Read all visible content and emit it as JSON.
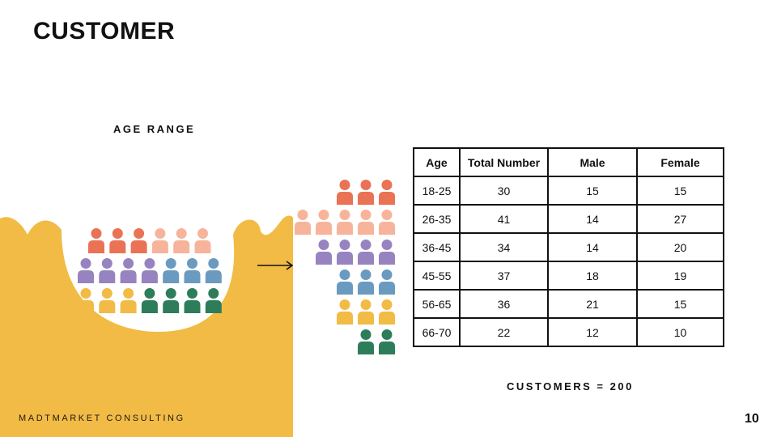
{
  "title": "CUSTOMER",
  "age_heading": "AGE RANGE",
  "table": {
    "headers": [
      "Age",
      "Total Number",
      "Male",
      "Female"
    ],
    "rows": [
      {
        "age": "18-25",
        "total": "30",
        "male": "15",
        "female": "15"
      },
      {
        "age": "26-35",
        "total": "41",
        "male": "14",
        "female": "27"
      },
      {
        "age": "36-45",
        "total": "34",
        "male": "14",
        "female": "20"
      },
      {
        "age": "45-55",
        "total": "37",
        "male": "18",
        "female": "19"
      },
      {
        "age": "56-65",
        "total": "36",
        "male": "21",
        "female": "15"
      },
      {
        "age": "66-70",
        "total": "22",
        "male": "12",
        "female": "10"
      }
    ]
  },
  "total_label": "CUSTOMERS = 200",
  "footer": "MADTMARKET CONSULTING",
  "page_number": "10",
  "colors": {
    "blob": "#f2bb45",
    "orange": "#ea7255",
    "peach": "#f7b49b",
    "purple": "#9783c0",
    "blue": "#6a9ac0",
    "yellow": "#f2bb45",
    "green": "#2e7d5a"
  },
  "icons": {
    "crowd": [
      [
        "orange",
        "orange",
        "orange",
        "peach",
        "peach",
        "peach"
      ],
      [
        "purple",
        "purple",
        "purple",
        "purple",
        "blue",
        "blue",
        "blue"
      ],
      [
        "yellow",
        "yellow",
        "yellow",
        "green",
        "green",
        "green",
        "green"
      ]
    ],
    "rows": [
      {
        "color": "orange",
        "count": 3
      },
      {
        "color": "peach",
        "count": 5
      },
      {
        "color": "purple",
        "count": 4
      },
      {
        "color": "blue",
        "count": 3
      },
      {
        "color": "yellow",
        "count": 3
      },
      {
        "color": "green",
        "count": 2
      }
    ]
  }
}
